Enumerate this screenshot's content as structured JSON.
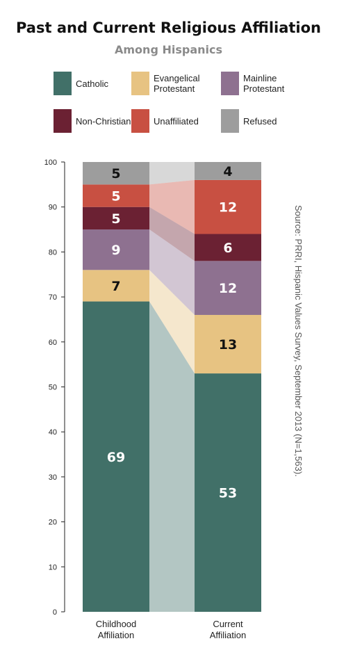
{
  "title": "Past and Current Religious Affiliation",
  "subtitle": "Among Hispanics",
  "source": "Source: PRRI, Hispanic Values Survey, September 2013 (N=1,563).",
  "legend": [
    {
      "label": "Catholic",
      "color": "#417068"
    },
    {
      "label": "Evangelical Protestant",
      "color": "#e7c382"
    },
    {
      "label": "Mainline Protestant",
      "color": "#8e7190"
    },
    {
      "label": "Non-Christian",
      "color": "#6b2133"
    },
    {
      "label": "Unaffiliated",
      "color": "#c85042"
    },
    {
      "label": "Refused",
      "color": "#9d9d9d"
    }
  ],
  "chart_data": {
    "type": "bar",
    "stacked": true,
    "categories": [
      "Childhood Affiliation",
      "Current Affiliation"
    ],
    "series": [
      {
        "name": "Catholic",
        "values": [
          69,
          53
        ],
        "color": "#417068"
      },
      {
        "name": "Evangelical Protestant",
        "values": [
          7,
          13
        ],
        "color": "#e7c382"
      },
      {
        "name": "Mainline Protestant",
        "values": [
          9,
          12
        ],
        "color": "#8e7190"
      },
      {
        "name": "Non-Christian",
        "values": [
          5,
          6
        ],
        "color": "#6b2133"
      },
      {
        "name": "Unaffiliated",
        "values": [
          5,
          12
        ],
        "color": "#c85042"
      },
      {
        "name": "Refused",
        "values": [
          5,
          4
        ],
        "color": "#9d9d9d"
      }
    ],
    "yticks": [
      0,
      10,
      20,
      30,
      40,
      50,
      60,
      70,
      80,
      90,
      100
    ],
    "ylim": [
      0,
      100
    ],
    "label_colors": [
      "#ffffff",
      "#111111",
      "#ffffff",
      "#ffffff",
      "#ffffff",
      "#111111"
    ]
  }
}
